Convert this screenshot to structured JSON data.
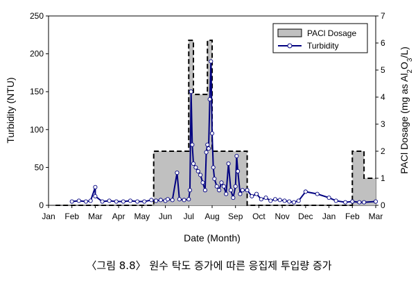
{
  "caption": "〈그림 8.8〉 원수 탁도 증가에 따른 응집제 투입량 증가",
  "chart_data": {
    "type": "line",
    "xlabel": "Date (Month)",
    "ylabel_left": "Turbidity (NTU)",
    "ylabel_right_parts": [
      "PACl Dosage (mg as Al",
      "2",
      "O",
      "3",
      "/L)"
    ],
    "x_tick_labels": [
      "Jan",
      "Feb",
      "Mar",
      "Apr",
      "May",
      "Jun",
      "Jul",
      "Aug",
      "Sep",
      "Oct",
      "Nov",
      "Dec",
      "Jan",
      "Feb",
      "Mar"
    ],
    "ylim_left": [
      0,
      250
    ],
    "yticks_left": [
      0,
      50,
      100,
      150,
      200,
      250
    ],
    "ylim_right": [
      0,
      7
    ],
    "yticks_right": [
      0,
      1,
      2,
      3,
      4,
      5,
      6,
      7
    ],
    "legend": {
      "placement": "top-right",
      "entries": [
        "PACl Dosage",
        "Turbidity"
      ]
    },
    "colors": {
      "turbidity": "#000080",
      "dosage_fill": "#c0c0c0",
      "dosage_line": "#000000"
    },
    "series": [
      {
        "name": "PACl Dosage",
        "axis": "right",
        "style": "step-area",
        "points": [
          [
            0.3,
            0
          ],
          [
            4.5,
            0
          ],
          [
            4.5,
            2
          ],
          [
            6.0,
            2
          ],
          [
            6.0,
            6.1
          ],
          [
            6.2,
            6.1
          ],
          [
            6.2,
            4.1
          ],
          [
            6.8,
            4.1
          ],
          [
            6.8,
            6.1
          ],
          [
            7.0,
            6.1
          ],
          [
            7.0,
            2.0
          ],
          [
            8.5,
            2.0
          ],
          [
            8.5,
            0
          ],
          [
            13.0,
            0
          ],
          [
            13.0,
            2.0
          ],
          [
            13.5,
            2.0
          ],
          [
            13.5,
            1.0
          ],
          [
            14.0,
            1.0
          ]
        ]
      },
      {
        "name": "Turbidity",
        "axis": "left",
        "style": "line-markers",
        "points": [
          [
            1.0,
            5
          ],
          [
            1.3,
            6
          ],
          [
            1.6,
            5
          ],
          [
            1.8,
            6
          ],
          [
            2.0,
            24
          ],
          [
            2.0,
            12
          ],
          [
            2.3,
            5
          ],
          [
            2.6,
            6
          ],
          [
            2.9,
            5
          ],
          [
            3.2,
            5
          ],
          [
            3.5,
            6
          ],
          [
            3.8,
            5
          ],
          [
            4.1,
            5
          ],
          [
            4.4,
            7
          ],
          [
            4.6,
            6
          ],
          [
            4.8,
            7
          ],
          [
            5.0,
            6
          ],
          [
            5.1,
            8
          ],
          [
            5.3,
            7
          ],
          [
            5.5,
            43
          ],
          [
            5.6,
            8
          ],
          [
            5.8,
            7
          ],
          [
            6.0,
            8
          ],
          [
            6.05,
            20
          ],
          [
            6.1,
            150
          ],
          [
            6.15,
            80
          ],
          [
            6.2,
            55
          ],
          [
            6.3,
            50
          ],
          [
            6.4,
            45
          ],
          [
            6.5,
            40
          ],
          [
            6.6,
            30
          ],
          [
            6.7,
            20
          ],
          [
            6.75,
            70
          ],
          [
            6.8,
            80
          ],
          [
            6.85,
            75
          ],
          [
            6.9,
            140
          ],
          [
            6.95,
            190
          ],
          [
            7.0,
            95
          ],
          [
            7.05,
            50
          ],
          [
            7.1,
            35
          ],
          [
            7.2,
            25
          ],
          [
            7.3,
            20
          ],
          [
            7.4,
            30
          ],
          [
            7.5,
            25
          ],
          [
            7.6,
            15
          ],
          [
            7.7,
            55
          ],
          [
            7.8,
            20
          ],
          [
            7.9,
            10
          ],
          [
            8.0,
            25
          ],
          [
            8.05,
            65
          ],
          [
            8.1,
            45
          ],
          [
            8.2,
            15
          ],
          [
            8.3,
            20
          ],
          [
            8.5,
            20
          ],
          [
            8.7,
            12
          ],
          [
            8.9,
            15
          ],
          [
            9.1,
            8
          ],
          [
            9.3,
            10
          ],
          [
            9.5,
            6
          ],
          [
            9.7,
            8
          ],
          [
            9.9,
            7
          ],
          [
            10.1,
            6
          ],
          [
            10.3,
            5
          ],
          [
            10.5,
            4
          ],
          [
            10.7,
            6
          ],
          [
            11.0,
            18
          ],
          [
            11.5,
            15
          ],
          [
            12.0,
            10
          ],
          [
            12.3,
            6
          ],
          [
            12.7,
            4
          ],
          [
            13.0,
            5
          ],
          [
            13.3,
            4
          ],
          [
            13.5,
            4
          ],
          [
            14.0,
            5
          ]
        ]
      }
    ]
  }
}
